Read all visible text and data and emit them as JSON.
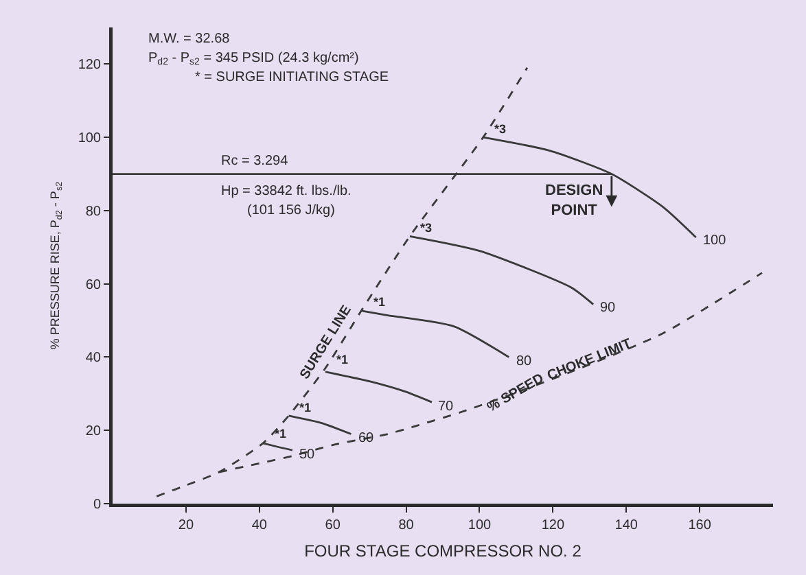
{
  "chart_data": {
    "type": "line",
    "xlabel": "FOUR STAGE COMPRESSOR NO. 2",
    "ylabel": "% PRESSURE RISE, P$_{d2}$ - P$_{s2}$",
    "xlim": [
      0,
      180
    ],
    "xticks": [
      20,
      40,
      60,
      80,
      100,
      120,
      140,
      160
    ],
    "ylim": [
      0,
      130
    ],
    "yticks": [
      0,
      20,
      40,
      60,
      80,
      100,
      120
    ],
    "grid": false,
    "legend": false,
    "marker": "none",
    "series": [
      {
        "color": "#3a3a3a",
        "line_style": "dashed",
        "x": [
          12,
          20,
          29,
          41,
          48,
          58,
          68,
          81,
          101,
          113
        ],
        "values": [
          2,
          5,
          8.6,
          16.5,
          24,
          37,
          53,
          73,
          100,
          119
        ]
      },
      {
        "color": "#3a3a3a",
        "line_style": "dashed",
        "x": [
          29,
          40,
          49,
          60,
          75,
          82,
          95,
          108,
          125,
          150,
          177
        ],
        "values": [
          8.6,
          11,
          13,
          16,
          19,
          21,
          25,
          29.6,
          36,
          46.5,
          63
        ]
      },
      {
        "color": "#3a3a3a",
        "line_style": "solid",
        "x": [
          0,
          136
        ],
        "values": [
          90,
          90
        ]
      },
      {
        "name": "50",
        "color": "#3a3a3a",
        "line_style": "solid",
        "x": [
          41,
          45,
          49
        ],
        "values": [
          16.5,
          15.5,
          14.6
        ]
      },
      {
        "name": "60",
        "color": "#3a3a3a",
        "line_style": "solid",
        "x": [
          48,
          57,
          65
        ],
        "values": [
          24,
          22,
          19
        ]
      },
      {
        "name": "70",
        "color": "#3a3a3a",
        "line_style": "solid",
        "x": [
          58,
          70,
          80,
          87
        ],
        "values": [
          36,
          33.4,
          30.5,
          27.7
        ]
      },
      {
        "name": "80",
        "color": "#3a3a3a",
        "line_style": "solid",
        "x": [
          68,
          75,
          93,
          108
        ],
        "values": [
          52.6,
          51.4,
          48.4,
          40
        ]
      },
      {
        "name": "90",
        "color": "#3a3a3a",
        "line_style": "solid",
        "x": [
          81,
          100,
          125,
          131
        ],
        "values": [
          73,
          69,
          59,
          54.4
        ]
      },
      {
        "name": "100",
        "color": "#3a3a3a",
        "line_style": "solid",
        "x": [
          101,
          119,
          136,
          150,
          159
        ],
        "values": [
          100,
          96.4,
          90,
          81,
          72.7
        ]
      }
    ],
    "annotations": [
      "M.W. = 32.68",
      "P$_{d2}$ - P$_{s2}$ = 345 PSID (24.3 kg/cm²)",
      "* = SURGE INITIATING STAGE",
      "Rc = 3.294",
      "Hp = 33842 ft. lbs./lb.",
      "(101 156 J/kg)",
      {
        "text": "DESIGN POINT",
        "x": 136,
        "y": 90
      },
      {
        "text": "SURGE LINE",
        "x": 62,
        "y": 44
      },
      {
        "text": "% SPEED",
        "x": 110,
        "y": 30
      },
      {
        "text": "CHOKE LIMIT",
        "x": 130,
        "y": 39
      },
      {
        "text": "*3",
        "x": 101,
        "y": 100
      },
      {
        "text": "*3",
        "x": 81,
        "y": 73
      },
      {
        "text": "*1",
        "x": 68,
        "y": 53
      },
      {
        "text": "*1",
        "x": 58,
        "y": 37
      },
      {
        "text": "*1",
        "x": 48,
        "y": 24
      },
      {
        "text": "*1",
        "x": 41,
        "y": 17
      }
    ]
  }
}
